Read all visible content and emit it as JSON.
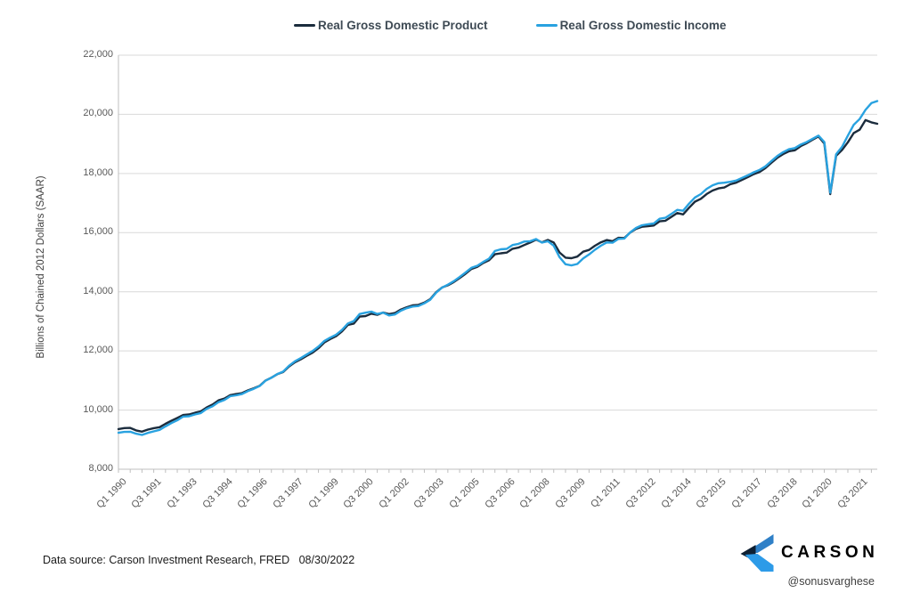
{
  "chart_data": {
    "type": "line",
    "title": "",
    "xlabel": "",
    "ylabel": "Billions of Chained 2012 Dollars (SAAR)",
    "ylim": [
      8000,
      22000
    ],
    "yticks": [
      8000,
      10000,
      12000,
      14000,
      16000,
      18000,
      20000,
      22000
    ],
    "grid": "horizontal",
    "grid_color": "#D9D9D9",
    "axis_color": "#BFBFBF",
    "tick_label_color": "#595959",
    "legend_position": "top-center",
    "x_frequency": "quarterly",
    "x_start": "Q1 1990",
    "x_end": "Q2 2022",
    "xtick_interval": 6,
    "xtick_labels": [
      "Q1 1990",
      "Q3 1991",
      "Q1 1993",
      "Q3 1994",
      "Q1 1996",
      "Q3 1997",
      "Q1 1999",
      "Q3 2000",
      "Q1 2002",
      "Q3 2003",
      "Q1 2005",
      "Q3 2006",
      "Q1 2008",
      "Q3 2009",
      "Q1 2011",
      "Q3 2012",
      "Q1 2014",
      "Q3 2015",
      "Q1 2017",
      "Q3 2018",
      "Q1 2020",
      "Q3 2021"
    ],
    "series": [
      {
        "name": "Real Gross Domestic Product",
        "color": "#1B2C3D",
        "values": [
          9358,
          9392,
          9398,
          9314,
          9270,
          9341,
          9388,
          9421,
          9534,
          9638,
          9733,
          9834,
          9851,
          9908,
          9956,
          10090,
          10188,
          10327,
          10387,
          10506,
          10543,
          10575,
          10665,
          10737,
          10818,
          10998,
          11096,
          11212,
          11284,
          11473,
          11615,
          11715,
          11832,
          11942,
          12091,
          12287,
          12403,
          12499,
          12662,
          12877,
          12924,
          13161,
          13178,
          13260,
          13222,
          13300,
          13244,
          13280,
          13397,
          13478,
          13539,
          13559,
          13634,
          13751,
          13985,
          14145,
          14221,
          14329,
          14464,
          14609,
          14771,
          14839,
          14972,
          15066,
          15267,
          15302,
          15326,
          15456,
          15493,
          15582,
          15666,
          15761,
          15671,
          15752,
          15667,
          15328,
          15155,
          15134,
          15189,
          15356,
          15415,
          15557,
          15671,
          15750,
          15712,
          15825,
          15820,
          16004,
          16129,
          16198,
          16220,
          16239,
          16382,
          16403,
          16531,
          16664,
          16616,
          16842,
          17047,
          17143,
          17306,
          17423,
          17496,
          17527,
          17634,
          17688,
          17786,
          17877,
          17977,
          18054,
          18185,
          18360,
          18530,
          18654,
          18752,
          18784,
          18927,
          19022,
          19141,
          19254,
          19011,
          17303,
          18597,
          18794,
          19055,
          19368,
          19479,
          19806,
          19731,
          19681
        ]
      },
      {
        "name": "Real Gross Domestic Income",
        "color": "#29A2E0",
        "values": [
          9230,
          9262,
          9268,
          9200,
          9158,
          9228,
          9280,
          9332,
          9448,
          9560,
          9652,
          9780,
          9790,
          9852,
          9900,
          10040,
          10130,
          10268,
          10340,
          10470,
          10500,
          10540,
          10640,
          10720,
          10812,
          10992,
          11092,
          11218,
          11300,
          11498,
          11648,
          11758,
          11878,
          11998,
          12150,
          12340,
          12450,
          12548,
          12712,
          12930,
          13010,
          13248,
          13292,
          13330,
          13250,
          13292,
          13200,
          13232,
          13360,
          13442,
          13500,
          13520,
          13610,
          13730,
          13970,
          14140,
          14240,
          14360,
          14500,
          14650,
          14810,
          14880,
          15010,
          15120,
          15380,
          15438,
          15452,
          15580,
          15620,
          15700,
          15712,
          15782,
          15662,
          15710,
          15560,
          15170,
          14930,
          14892,
          14940,
          15130,
          15262,
          15420,
          15558,
          15668,
          15660,
          15790,
          15800,
          16010,
          16160,
          16250,
          16282,
          16310,
          16470,
          16502,
          16632,
          16770,
          16740,
          16980,
          17190,
          17302,
          17480,
          17600,
          17670,
          17690,
          17720,
          17762,
          17850,
          17940,
          18040,
          18122,
          18242,
          18420,
          18590,
          18720,
          18820,
          18860,
          18980,
          19062,
          19172,
          19282,
          19062,
          17352,
          18650,
          18900,
          19282,
          19650,
          19840,
          20150,
          20380,
          20450
        ]
      }
    ]
  },
  "footer": {
    "source_text": "Data source: Carson Investment Research, FRED   08/30/2022",
    "handle": "@sonusvarghese"
  },
  "brand": {
    "name": "CARSON",
    "wordmark_color": "#15253E",
    "logo": {
      "top_color": "#2F80C7",
      "dark_color": "#0E2033",
      "bottom_color": "#2D9BE8"
    }
  }
}
